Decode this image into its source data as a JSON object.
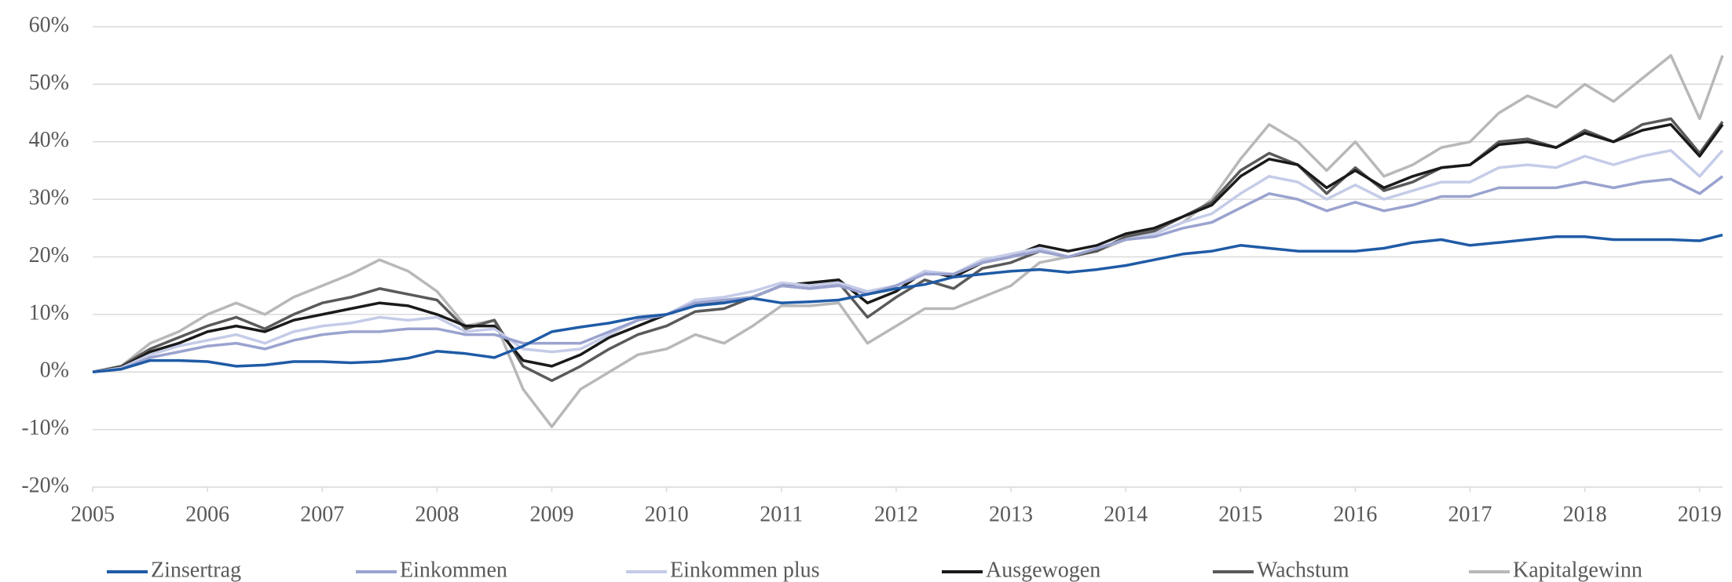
{
  "chart_data": {
    "type": "line",
    "x": [
      2005,
      2005.25,
      2005.5,
      2005.75,
      2006,
      2006.25,
      2006.5,
      2006.75,
      2007,
      2007.25,
      2007.5,
      2007.75,
      2008,
      2008.25,
      2008.5,
      2008.75,
      2009,
      2009.25,
      2009.5,
      2009.75,
      2010,
      2010.25,
      2010.5,
      2010.75,
      2011,
      2011.25,
      2011.5,
      2011.75,
      2012,
      2012.25,
      2012.5,
      2012.75,
      2013,
      2013.25,
      2013.5,
      2013.75,
      2014,
      2014.25,
      2014.5,
      2014.75,
      2015,
      2015.25,
      2015.5,
      2015.75,
      2016,
      2016.25,
      2016.5,
      2016.75,
      2017,
      2017.25,
      2017.5,
      2017.75,
      2018,
      2018.25,
      2018.5,
      2018.75,
      2019,
      2019.2
    ],
    "series": [
      {
        "name": "Zinsertrag",
        "color": "#1f5ba6",
        "values": [
          0,
          0.5,
          2,
          2,
          1.8,
          1,
          1.2,
          1.8,
          1.8,
          1.6,
          1.8,
          2.4,
          3.6,
          3.2,
          2.5,
          4.5,
          7,
          7.8,
          8.5,
          9.5,
          10,
          11.5,
          12,
          12.8,
          12,
          12.2,
          12.5,
          13.5,
          14.5,
          15.2,
          16.5,
          17,
          17.5,
          17.8,
          17.3,
          17.8,
          18.5,
          19.5,
          20.5,
          21,
          22,
          21.5,
          21,
          21,
          21,
          21.5,
          22.5,
          23,
          22,
          22.5,
          23,
          23.5,
          23.5,
          23,
          23,
          23,
          22.8,
          23.8
        ]
      },
      {
        "name": "Einkommen",
        "color": "#9aa3cf",
        "values": [
          0,
          0.5,
          2.5,
          3.5,
          4.5,
          5,
          4,
          5.5,
          6.5,
          7,
          7,
          7.5,
          7.5,
          6.5,
          6.5,
          5,
          5,
          5,
          7,
          9,
          10,
          12,
          12.5,
          13,
          15,
          14.5,
          15,
          13.5,
          15,
          17,
          17,
          19,
          20,
          21,
          20,
          21.5,
          23,
          23.5,
          25,
          26,
          28.5,
          31,
          30,
          28,
          29.5,
          28,
          29,
          30.5,
          30.5,
          32,
          32,
          32,
          33,
          32,
          33,
          33.5,
          31,
          34
        ]
      },
      {
        "name": "Einkommen plus",
        "color": "#c5cce8",
        "values": [
          0,
          0.7,
          3,
          4.5,
          5.5,
          6.5,
          5,
          7,
          8,
          8.5,
          9.5,
          9,
          9.5,
          7,
          7.5,
          4,
          3.5,
          4,
          6.5,
          9,
          10,
          12.5,
          13,
          14,
          15.5,
          15,
          15.5,
          14,
          15,
          17.5,
          17,
          19.5,
          20.5,
          21.5,
          20,
          21.5,
          23,
          24,
          26,
          27.5,
          31,
          34,
          33,
          30,
          32.5,
          30,
          31.5,
          33,
          33,
          35.5,
          36,
          35.5,
          37.5,
          36,
          37.5,
          38.5,
          34,
          38.5
        ]
      },
      {
        "name": "Ausgewogen",
        "color": "#1a1a1a",
        "values": [
          0,
          0.8,
          3.5,
          5,
          7,
          8,
          7,
          9,
          10,
          11,
          12,
          11.5,
          10,
          8,
          8,
          2,
          1,
          3,
          6,
          8,
          10,
          12,
          12,
          13,
          15,
          15.5,
          16,
          12,
          14,
          17.5,
          16.5,
          19,
          20,
          22,
          21,
          22,
          24,
          25,
          27,
          29,
          34,
          37,
          36,
          32,
          35,
          32,
          34,
          35.5,
          36,
          39.5,
          40,
          39,
          41.5,
          40,
          42,
          43,
          37.5,
          43
        ]
      },
      {
        "name": "Wachstum",
        "color": "#5a5a5a",
        "values": [
          0,
          1,
          4,
          6,
          8,
          9.5,
          7.5,
          10,
          12,
          13,
          14.5,
          13.5,
          12.5,
          7.5,
          9,
          1,
          -1.5,
          1,
          4,
          6.5,
          8,
          10.5,
          11,
          13,
          15,
          14.5,
          15.5,
          9.5,
          13,
          16,
          14.5,
          18,
          19,
          21,
          20,
          21,
          23.5,
          24.5,
          27,
          29.5,
          35,
          38,
          36,
          31,
          35.5,
          31.5,
          33,
          35.5,
          36,
          40,
          40.5,
          39,
          42,
          40,
          43,
          44,
          38,
          43.5
        ]
      },
      {
        "name": "Kapitalgewinn",
        "color": "#b8b8b8",
        "values": [
          0,
          1,
          5,
          7,
          10,
          12,
          10,
          13,
          15,
          17,
          19.5,
          17.5,
          14,
          8,
          9,
          -3,
          -9.5,
          -3,
          0,
          3,
          4,
          6.5,
          5,
          8,
          11.5,
          11.5,
          12,
          5,
          8,
          11,
          11,
          13,
          15,
          19,
          20,
          21,
          23,
          24,
          26,
          30,
          37,
          43,
          40,
          35,
          40,
          34,
          36,
          39,
          40,
          45,
          48,
          46,
          50,
          47,
          51,
          55,
          44,
          55
        ]
      }
    ],
    "xlim": [
      2005,
      2019.2
    ],
    "xticks": [
      2005,
      2006,
      2007,
      2008,
      2009,
      2010,
      2011,
      2012,
      2013,
      2014,
      2015,
      2016,
      2017,
      2018,
      2019
    ],
    "ylim": [
      -20,
      60
    ],
    "yticks": [
      {
        "value": -20,
        "label": "-20%"
      },
      {
        "value": -10,
        "label": "-10%"
      },
      {
        "value": 0,
        "label": "0%"
      },
      {
        "value": 10,
        "label": "10%"
      },
      {
        "value": 20,
        "label": "20%"
      },
      {
        "value": 30,
        "label": "30%"
      },
      {
        "value": 40,
        "label": "40%"
      },
      {
        "value": 50,
        "label": "50%"
      },
      {
        "value": 60,
        "label": "60%"
      }
    ],
    "grid": true,
    "legend": "bottom"
  }
}
